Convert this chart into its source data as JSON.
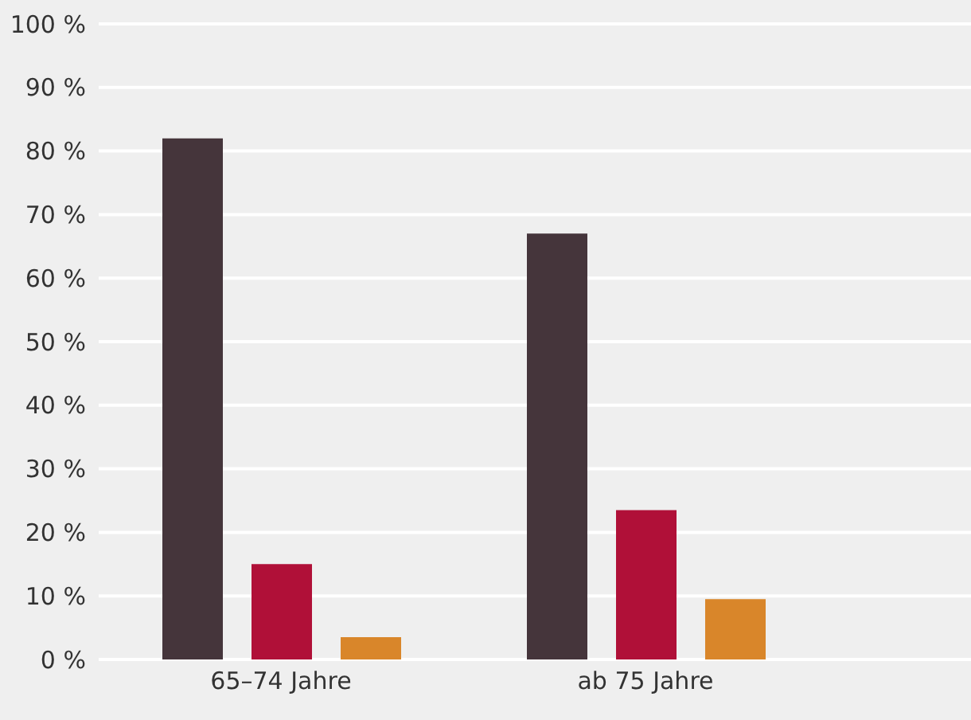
{
  "chart_data": {
    "type": "bar",
    "categories": [
      "65–74 Jahre",
      "ab 75 Jahre"
    ],
    "series": [
      {
        "color": "#45353b",
        "values": [
          82,
          67
        ]
      },
      {
        "color": "#b01038",
        "values": [
          15,
          23.5
        ]
      },
      {
        "color": "#d9862a",
        "values": [
          3.5,
          9.5
        ]
      }
    ],
    "ylim": [
      0,
      100
    ],
    "yticks": [
      {
        "value": 0,
        "label": "0 %"
      },
      {
        "value": 10,
        "label": "10 %"
      },
      {
        "value": 20,
        "label": "20 %"
      },
      {
        "value": 30,
        "label": "30 %"
      },
      {
        "value": 40,
        "label": "40 %"
      },
      {
        "value": 50,
        "label": "50 %"
      },
      {
        "value": 60,
        "label": "60 %"
      },
      {
        "value": 70,
        "label": "70 %"
      },
      {
        "value": 80,
        "label": "80 %"
      },
      {
        "value": 90,
        "label": "90 %"
      },
      {
        "value": 100,
        "label": "100 %"
      }
    ],
    "grid": "y",
    "legend": false
  }
}
